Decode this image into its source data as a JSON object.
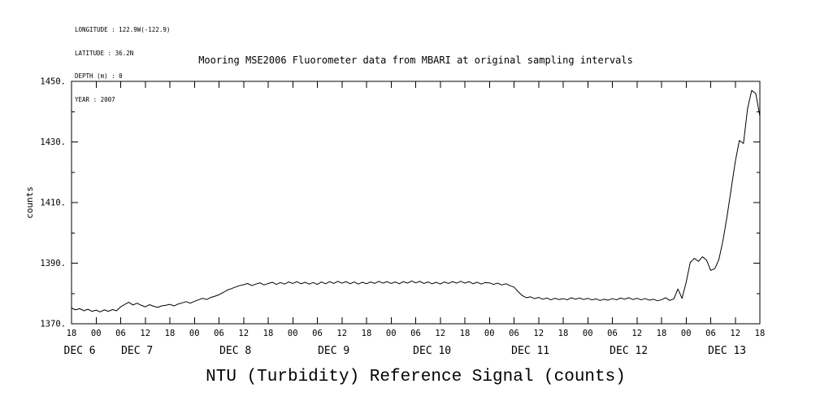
{
  "meta": {
    "longitude": "LONGITUDE : 122.9W(-122.9)",
    "latitude": "LATITUDE : 36.2N",
    "depth": "DEPTH (m) : 0",
    "year": "YEAR : 2007"
  },
  "chart_data": {
    "type": "line",
    "title": "Mooring MSE2006 Fluorometer data from MBARI at original sampling intervals",
    "xlabel": "NTU (Turbidity) Reference Signal (counts)",
    "ylabel": "counts",
    "line_color": "#000000",
    "grid": false,
    "legend": null,
    "ylim": [
      1370,
      1450
    ],
    "yticks": [
      1370,
      1390,
      1410,
      1430,
      1450
    ],
    "ytick_labels": [
      "1370.",
      "1390.",
      "1410.",
      "1430.",
      "1450."
    ],
    "yticks_minor": [
      1380,
      1400,
      1420,
      1440
    ],
    "xlim_hours": [
      0,
      168
    ],
    "x_axis_start": "DEC 6 18:00",
    "hour_tick_step": 6,
    "hour_tick_labels": [
      "18",
      "00",
      "06",
      "12",
      "18",
      "00",
      "06",
      "12",
      "18",
      "00",
      "06",
      "12",
      "18",
      "00",
      "06",
      "12",
      "18",
      "00",
      "06",
      "12",
      "18",
      "00",
      "06",
      "12",
      "18",
      "00",
      "06",
      "12",
      "18"
    ],
    "date_labels": [
      {
        "label": "DEC 6",
        "hour": 2
      },
      {
        "label": "DEC 7",
        "hour": 16
      },
      {
        "label": "DEC 8",
        "hour": 40
      },
      {
        "label": "DEC 9",
        "hour": 64
      },
      {
        "label": "DEC 10",
        "hour": 88
      },
      {
        "label": "DEC 11",
        "hour": 112
      },
      {
        "label": "DEC 12",
        "hour": 136
      },
      {
        "label": "DEC 13",
        "hour": 160
      }
    ],
    "x_hours_start": 0,
    "x_hours_step": 1,
    "series": [
      {
        "name": "NTU reference signal",
        "values": [
          1375.2,
          1374.6,
          1375.0,
          1374.3,
          1374.8,
          1374.1,
          1374.5,
          1373.9,
          1374.6,
          1374.1,
          1374.7,
          1374.3,
          1375.6,
          1376.4,
          1377.1,
          1376.2,
          1376.8,
          1376.1,
          1375.6,
          1376.3,
          1375.8,
          1375.4,
          1375.9,
          1376.1,
          1376.4,
          1375.9,
          1376.5,
          1376.9,
          1377.3,
          1376.8,
          1377.4,
          1377.9,
          1378.4,
          1378.0,
          1378.7,
          1379.1,
          1379.6,
          1380.3,
          1381.1,
          1381.6,
          1382.1,
          1382.6,
          1382.9,
          1383.3,
          1382.6,
          1383.1,
          1383.5,
          1382.8,
          1383.3,
          1383.7,
          1383.0,
          1383.6,
          1383.1,
          1383.8,
          1383.3,
          1383.9,
          1383.2,
          1383.7,
          1383.1,
          1383.6,
          1383.0,
          1383.8,
          1383.2,
          1383.9,
          1383.3,
          1384.0,
          1383.4,
          1383.9,
          1383.2,
          1383.8,
          1383.1,
          1383.7,
          1383.2,
          1383.8,
          1383.3,
          1384.0,
          1383.4,
          1383.9,
          1383.3,
          1383.8,
          1383.2,
          1383.9,
          1383.4,
          1384.1,
          1383.5,
          1384.0,
          1383.3,
          1383.8,
          1383.2,
          1383.7,
          1383.1,
          1383.8,
          1383.3,
          1383.9,
          1383.4,
          1384.0,
          1383.4,
          1383.9,
          1383.2,
          1383.7,
          1383.1,
          1383.6,
          1383.5,
          1383.0,
          1383.4,
          1382.8,
          1383.2,
          1382.6,
          1382.1,
          1380.6,
          1379.3,
          1378.6,
          1378.9,
          1378.3,
          1378.7,
          1378.1,
          1378.5,
          1377.9,
          1378.4,
          1378.0,
          1378.3,
          1377.9,
          1378.6,
          1378.1,
          1378.5,
          1378.0,
          1378.4,
          1377.9,
          1378.2,
          1377.7,
          1378.1,
          1377.8,
          1378.3,
          1377.9,
          1378.5,
          1378.1,
          1378.6,
          1378.0,
          1378.4,
          1377.9,
          1378.3,
          1377.8,
          1378.1,
          1377.6,
          1377.9,
          1378.6,
          1377.7,
          1378.2,
          1381.5,
          1378.4,
          1383.6,
          1390.2,
          1391.6,
          1390.6,
          1392.1,
          1391.0,
          1387.6,
          1388.2,
          1391.2,
          1397.5,
          1405.5,
          1414.5,
          1423.5,
          1430.5,
          1429.5,
          1441.0,
          1447.0,
          1446.0,
          1438.5
        ]
      }
    ]
  }
}
